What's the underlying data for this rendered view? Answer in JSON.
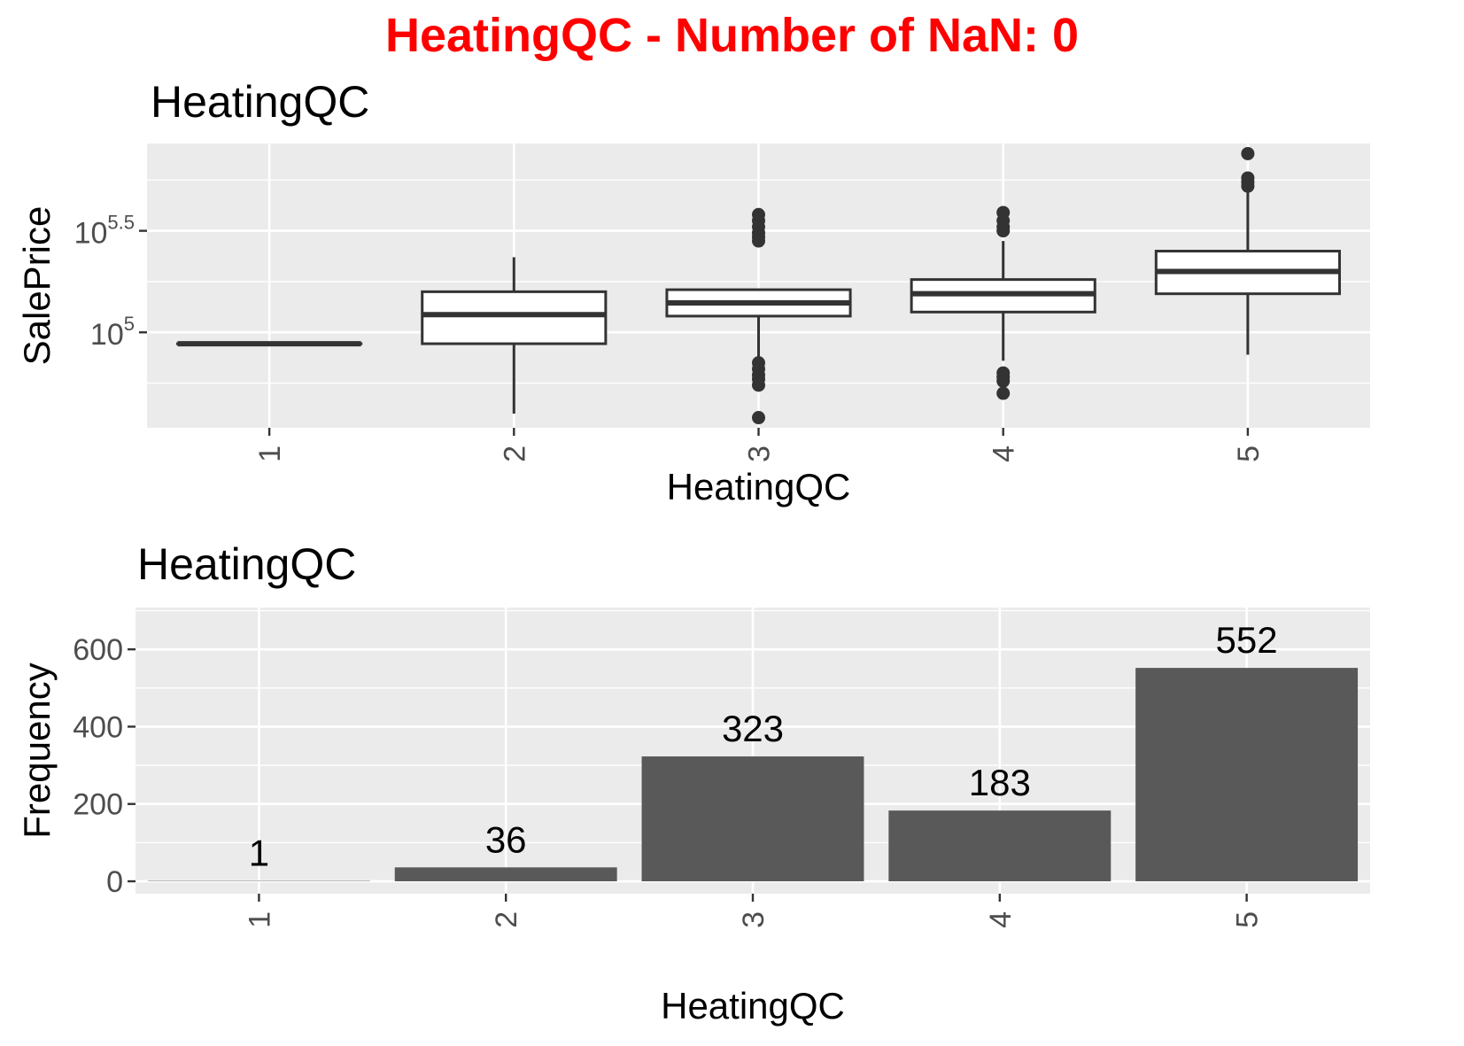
{
  "figure_title": "HeatingQC - Number of NaN: 0",
  "chart_data": [
    {
      "type": "boxplot",
      "title": "HeatingQC",
      "xlabel": "HeatingQC",
      "ylabel": "SalePrice",
      "y_scale": "log10",
      "categories": [
        "1",
        "2",
        "3",
        "4",
        "5"
      ],
      "y_ticks": [
        {
          "base": "10",
          "exponent": "5",
          "log10": 5.0
        },
        {
          "base": "10",
          "exponent": "5.5",
          "log10": 5.5
        }
      ],
      "ylim_log10": [
        4.53,
        5.93
      ],
      "boxes": [
        {
          "category": "1",
          "min": 4.944,
          "q1": 4.944,
          "median": 4.944,
          "q3": 4.944,
          "max": 4.944,
          "outliers": []
        },
        {
          "category": "2",
          "min": 4.6,
          "q1": 4.944,
          "median": 5.087,
          "q3": 5.2,
          "max": 5.37,
          "outliers": []
        },
        {
          "category": "3",
          "min": 4.83,
          "q1": 5.08,
          "median": 5.145,
          "q3": 5.21,
          "max": 5.21,
          "outliers": [
            5.58,
            5.55,
            5.52,
            5.49,
            5.47,
            5.45,
            4.85,
            4.82,
            4.79,
            4.77,
            4.74,
            4.58
          ]
        },
        {
          "category": "4",
          "min": 4.86,
          "q1": 5.1,
          "median": 5.19,
          "q3": 5.26,
          "max": 5.45,
          "outliers": [
            5.59,
            5.55,
            5.52,
            5.5,
            4.8,
            4.78,
            4.76,
            4.7
          ]
        },
        {
          "category": "5",
          "min": 4.89,
          "q1": 5.19,
          "median": 5.3,
          "q3": 5.4,
          "max": 5.7,
          "outliers": [
            5.88,
            5.76,
            5.74,
            5.72
          ]
        }
      ]
    },
    {
      "type": "bar",
      "title": "HeatingQC",
      "xlabel": "HeatingQC",
      "ylabel": "Frequency",
      "categories": [
        "1",
        "2",
        "3",
        "4",
        "5"
      ],
      "values": [
        1,
        36,
        323,
        183,
        552
      ],
      "data_labels": [
        "1",
        "36",
        "323",
        "183",
        "552"
      ],
      "y_ticks": [
        "0",
        "200",
        "400",
        "600"
      ],
      "ylim": [
        -32,
        708
      ]
    }
  ],
  "colors": {
    "panel_background": "#ebebeb",
    "grid": "#ffffff",
    "bar_fill": "#595959",
    "box_stroke": "#333333",
    "title_red": "#ff0000",
    "tick_text": "#4d4d4d"
  }
}
